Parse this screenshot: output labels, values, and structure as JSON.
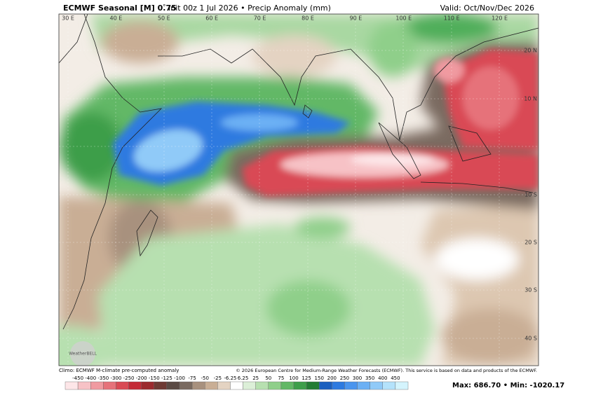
{
  "header": {
    "title": "ECMWF Seasonal [M] 0.75",
    "degree": "°",
    "subtitle": "Init 00z 1 Jul 2026 • Precip Anomaly (mm)",
    "valid": "Valid: Oct/Nov/Dec 2026"
  },
  "map": {
    "lon_labels": [
      "30 E",
      "40 E",
      "50 E",
      "60 E",
      "70 E",
      "80 E",
      "90 E",
      "100 E",
      "110 E",
      "120 E"
    ],
    "lat_labels": [
      "20 N",
      "10 N",
      "10 S",
      "20 S",
      "30 S",
      "40 S"
    ],
    "logo": "WeatherBELL"
  },
  "footer": {
    "climo": "Climo: ECMWF M-climate pre-computed anomaly",
    "copyright": "© 2026 European Centre for Medium-Range Weather Forecasts (ECMWF). This service is based on data and products of the ECMWF.",
    "stats": "Max: 686.70 • Min: -1020.17"
  },
  "colorbar": {
    "levels": [
      -450,
      -400,
      -350,
      -300,
      -250,
      -200,
      -150,
      -125,
      -100,
      -75,
      -50,
      -25,
      -6.25,
      6.25,
      25,
      50,
      75,
      100,
      125,
      150,
      200,
      250,
      300,
      350,
      400,
      450
    ],
    "colors": [
      "#fde6e8",
      "#f7c2c6",
      "#f09aa0",
      "#e6727a",
      "#d94a54",
      "#c42a36",
      "#9c2a2e",
      "#6e3a34",
      "#5a4a44",
      "#7a6a60",
      "#a8917e",
      "#c9ae95",
      "#e4d3c2",
      "#ffffff",
      "#dcefd8",
      "#b7e0b0",
      "#8fcf8a",
      "#62b866",
      "#3d9e4a",
      "#237c34",
      "#1a5fbf",
      "#2d7ae0",
      "#4a95ee",
      "#6cb0f4",
      "#90caf8",
      "#b4e2fb",
      "#d4f4fd"
    ]
  }
}
